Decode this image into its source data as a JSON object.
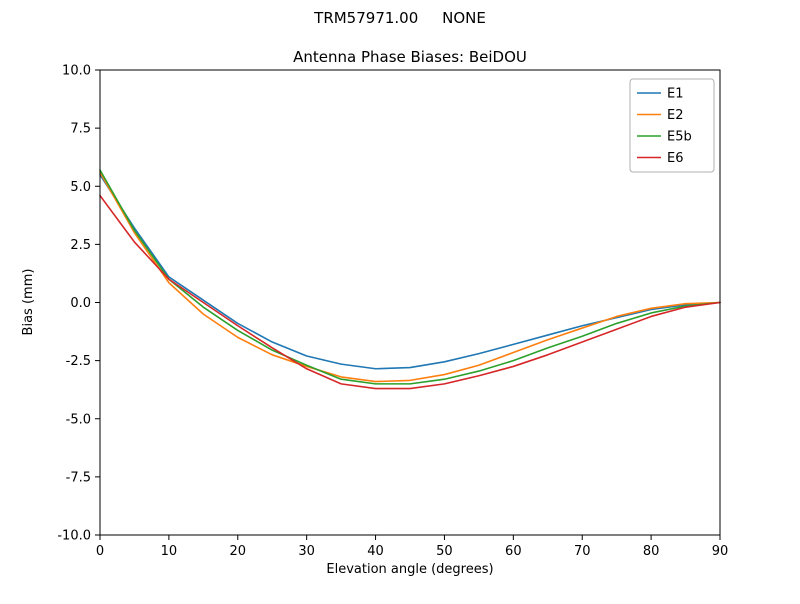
{
  "chart_data": {
    "type": "line",
    "suptitle": "TRM57971.00     NONE",
    "title": "Antenna Phase Biases: BeiDOU",
    "xlabel": "Elevation angle (degrees)",
    "ylabel": "Bias (mm)",
    "xlim": [
      0,
      90
    ],
    "ylim": [
      -10,
      10
    ],
    "xticks": [
      0,
      10,
      20,
      30,
      40,
      50,
      60,
      70,
      80,
      90
    ],
    "xtick_labels": [
      "0",
      "10",
      "20",
      "30",
      "40",
      "50",
      "60",
      "70",
      "80",
      "90"
    ],
    "yticks": [
      -10,
      -7.5,
      -5,
      -2.5,
      0,
      2.5,
      5,
      7.5,
      10
    ],
    "ytick_labels": [
      "-10.0",
      "-7.5",
      "-5.0",
      "-2.5",
      "0.0",
      "2.5",
      "5.0",
      "7.5",
      "10.0"
    ],
    "grid": false,
    "legend_position": "top-right",
    "x": [
      0,
      5,
      10,
      15,
      20,
      25,
      30,
      35,
      40,
      45,
      50,
      55,
      60,
      65,
      70,
      75,
      80,
      85,
      90
    ],
    "series": [
      {
        "name": "E1",
        "color": "#1f77b4",
        "values": [
          5.5,
          3.2,
          1.1,
          0.1,
          -0.9,
          -1.7,
          -2.3,
          -2.65,
          -2.85,
          -2.8,
          -2.55,
          -2.2,
          -1.8,
          -1.4,
          -1.0,
          -0.65,
          -0.3,
          -0.1,
          0.0
        ]
      },
      {
        "name": "E2",
        "color": "#ff7f0e",
        "values": [
          5.6,
          3.0,
          0.85,
          -0.5,
          -1.5,
          -2.25,
          -2.75,
          -3.2,
          -3.4,
          -3.35,
          -3.1,
          -2.7,
          -2.15,
          -1.6,
          -1.1,
          -0.6,
          -0.25,
          -0.05,
          0.0
        ]
      },
      {
        "name": "E5b",
        "color": "#2ca02c",
        "values": [
          5.7,
          3.1,
          1.0,
          -0.2,
          -1.2,
          -2.05,
          -2.7,
          -3.3,
          -3.5,
          -3.5,
          -3.3,
          -2.95,
          -2.5,
          -1.95,
          -1.45,
          -0.9,
          -0.45,
          -0.15,
          0.0
        ]
      },
      {
        "name": "E6",
        "color": "#d62728",
        "values": [
          4.6,
          2.6,
          1.0,
          0.0,
          -1.0,
          -1.95,
          -2.85,
          -3.5,
          -3.7,
          -3.7,
          -3.5,
          -3.15,
          -2.75,
          -2.25,
          -1.7,
          -1.15,
          -0.6,
          -0.2,
          0.0
        ]
      }
    ]
  }
}
